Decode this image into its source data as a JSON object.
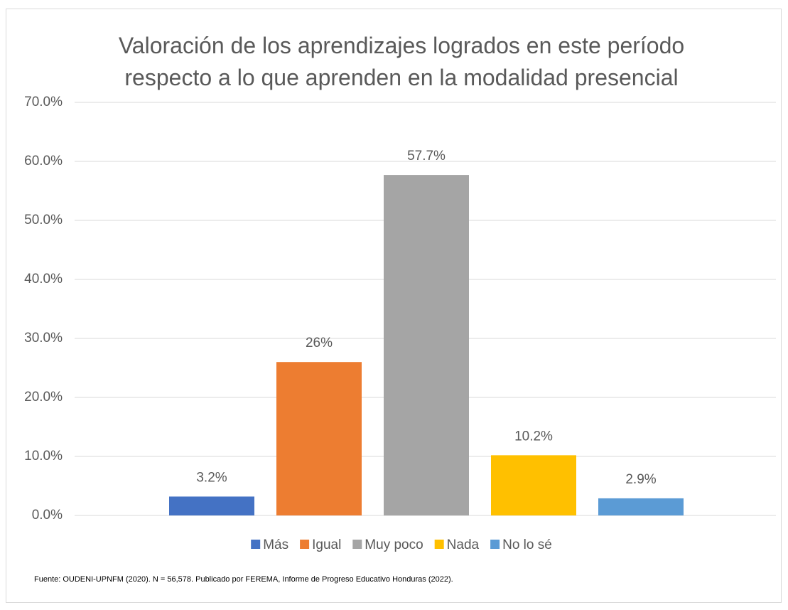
{
  "chart_data": {
    "type": "bar",
    "title": "Valoración de los aprendizajes logrados en este período respecto a lo que aprenden en la modalidad presencial",
    "categories": [
      "Más",
      "Igual",
      "Muy poco",
      "Nada",
      "No lo sé"
    ],
    "values": [
      3.2,
      26,
      57.7,
      10.2,
      2.9
    ],
    "value_labels": [
      "3.2%",
      "26%",
      "57.7%",
      "10.2%",
      "2.9%"
    ],
    "colors": [
      "#4472c4",
      "#ed7d31",
      "#a5a5a5",
      "#ffc000",
      "#5b9bd5"
    ],
    "ylim": [
      0,
      70
    ],
    "yticks": [
      {
        "value": 0,
        "label": "0.0%"
      },
      {
        "value": 10,
        "label": "10.0%"
      },
      {
        "value": 20,
        "label": "20.0%"
      },
      {
        "value": 30,
        "label": "30.0%"
      },
      {
        "value": 40,
        "label": "40.0%"
      },
      {
        "value": 50,
        "label": "50.0%"
      },
      {
        "value": 60,
        "label": "60.0%"
      },
      {
        "value": 70,
        "label": "70.0%"
      }
    ],
    "grid": true,
    "legend": "bottom",
    "source": "Fuente: OUDENI-UPNFM (2020). N = 56,578. Publicado por FEREMA, Informe de Progreso Educativo Honduras (2022)."
  }
}
